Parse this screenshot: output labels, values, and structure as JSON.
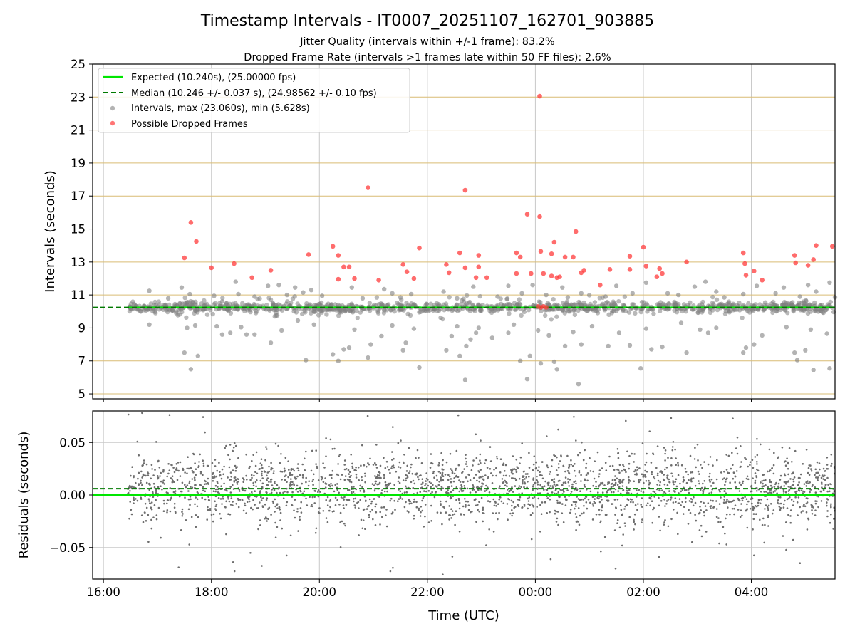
{
  "chart_data": {
    "type": "scatter",
    "title": "Timestamp Intervals - IT0007_20251107_162701_903885",
    "subtitle_1": "Jitter Quality (intervals within +/-1 frame): 83.2%",
    "subtitle_2": "Dropped Frame Rate (intervals >1 frames late within 50 FF files): 2.6%",
    "xlabel": "Time (UTC)",
    "x_ticks": [
      "16:00",
      "18:00",
      "20:00",
      "22:00",
      "00:00",
      "02:00",
      "04:00"
    ],
    "x_range_hours": [
      15.8,
      29.55
    ],
    "x_unit_note": "hours since 00:00 of start day (24 = 00:00 next day)",
    "data_start_hour": 16.45,
    "top_panel": {
      "ylabel": "Intervals (seconds)",
      "ylim": [
        4.7,
        25
      ],
      "y_ticks": [
        "5",
        "7",
        "9",
        "11",
        "13",
        "15",
        "17",
        "19",
        "21",
        "23",
        "25"
      ],
      "y_tick_values": [
        5,
        7,
        9,
        11,
        13,
        15,
        17,
        19,
        21,
        23,
        25
      ],
      "expected_interval_s": 10.24,
      "median_interval_s": 10.246,
      "dropped_frames": [
        [
          17.5,
          13.25
        ],
        [
          17.62,
          15.4
        ],
        [
          17.72,
          14.25
        ],
        [
          18.0,
          12.65
        ],
        [
          18.42,
          12.9
        ],
        [
          18.75,
          12.05
        ],
        [
          19.1,
          12.5
        ],
        [
          19.8,
          13.45
        ],
        [
          20.25,
          13.95
        ],
        [
          20.35,
          13.4
        ],
        [
          20.35,
          11.95
        ],
        [
          20.45,
          12.7
        ],
        [
          20.55,
          12.7
        ],
        [
          20.65,
          12.0
        ],
        [
          20.9,
          17.5
        ],
        [
          21.1,
          11.9
        ],
        [
          21.55,
          12.85
        ],
        [
          21.62,
          12.4
        ],
        [
          21.75,
          12.0
        ],
        [
          21.85,
          13.85
        ],
        [
          22.35,
          12.85
        ],
        [
          22.4,
          12.35
        ],
        [
          22.6,
          13.55
        ],
        [
          22.7,
          17.35
        ],
        [
          22.7,
          12.65
        ],
        [
          22.9,
          12.05
        ],
        [
          22.95,
          13.4
        ],
        [
          22.95,
          12.7
        ],
        [
          23.1,
          12.05
        ],
        [
          23.65,
          12.3
        ],
        [
          23.65,
          13.55
        ],
        [
          23.72,
          13.3
        ],
        [
          23.85,
          15.9
        ],
        [
          23.92,
          12.3
        ],
        [
          24.08,
          23.05
        ],
        [
          24.08,
          15.75
        ],
        [
          24.1,
          13.65
        ],
        [
          24.15,
          12.3
        ],
        [
          24.3,
          13.5
        ],
        [
          24.3,
          12.15
        ],
        [
          24.35,
          14.2
        ],
        [
          24.4,
          12.05
        ],
        [
          24.45,
          12.1
        ],
        [
          24.55,
          13.3
        ],
        [
          24.7,
          13.3
        ],
        [
          24.75,
          14.85
        ],
        [
          24.85,
          12.35
        ],
        [
          24.9,
          12.5
        ],
        [
          25.2,
          11.6
        ],
        [
          25.38,
          12.55
        ],
        [
          25.75,
          13.35
        ],
        [
          25.75,
          12.55
        ],
        [
          26.0,
          13.9
        ],
        [
          26.05,
          12.75
        ],
        [
          26.25,
          12.1
        ],
        [
          26.3,
          12.6
        ],
        [
          26.35,
          12.3
        ],
        [
          26.8,
          13.0
        ],
        [
          27.85,
          13.55
        ],
        [
          27.88,
          12.9
        ],
        [
          27.9,
          12.2
        ],
        [
          28.05,
          12.45
        ],
        [
          28.2,
          11.9
        ],
        [
          28.8,
          13.4
        ],
        [
          28.82,
          12.95
        ],
        [
          29.05,
          12.8
        ],
        [
          29.15,
          13.15
        ],
        [
          29.2,
          14.0
        ],
        [
          29.5,
          13.95
        ],
        [
          24.05,
          10.3
        ],
        [
          24.1,
          10.25
        ],
        [
          24.15,
          10.3
        ],
        [
          24.2,
          10.25
        ]
      ],
      "high_intervals": [
        [
          16.85,
          11.25
        ],
        [
          17.2,
          10.8
        ],
        [
          17.45,
          11.45
        ],
        [
          17.55,
          10.55
        ],
        [
          17.6,
          11.05
        ],
        [
          18.05,
          10.95
        ],
        [
          18.2,
          10.6
        ],
        [
          18.45,
          11.8
        ],
        [
          18.5,
          11.05
        ],
        [
          18.8,
          10.9
        ],
        [
          19.05,
          11.55
        ],
        [
          19.25,
          11.6
        ],
        [
          19.4,
          11.0
        ],
        [
          19.55,
          11.45
        ],
        [
          19.7,
          11.15
        ],
        [
          19.85,
          11.3
        ],
        [
          20.05,
          10.95
        ],
        [
          20.6,
          11.45
        ],
        [
          20.8,
          10.8
        ],
        [
          21.2,
          11.35
        ],
        [
          21.35,
          11.1
        ],
        [
          21.5,
          10.85
        ],
        [
          21.7,
          11.05
        ],
        [
          22.3,
          11.2
        ],
        [
          22.55,
          10.8
        ],
        [
          22.85,
          11.5
        ],
        [
          23.3,
          10.9
        ],
        [
          23.5,
          11.55
        ],
        [
          23.75,
          11.1
        ],
        [
          23.95,
          11.6
        ],
        [
          24.2,
          11.0
        ],
        [
          24.5,
          11.45
        ],
        [
          24.6,
          10.85
        ],
        [
          24.85,
          11.1
        ],
        [
          25.3,
          10.9
        ],
        [
          25.5,
          11.55
        ],
        [
          25.8,
          11.1
        ],
        [
          26.05,
          11.75
        ],
        [
          26.45,
          11.1
        ],
        [
          26.65,
          11.0
        ],
        [
          26.95,
          11.5
        ],
        [
          27.15,
          11.8
        ],
        [
          27.35,
          11.2
        ],
        [
          27.5,
          10.85
        ],
        [
          27.85,
          11.05
        ],
        [
          28.1,
          11.55
        ],
        [
          28.45,
          11.1
        ],
        [
          28.6,
          11.45
        ],
        [
          28.9,
          10.9
        ],
        [
          29.05,
          11.6
        ],
        [
          29.2,
          11.2
        ],
        [
          29.45,
          11.75
        ]
      ],
      "low_intervals": [
        [
          16.85,
          9.2
        ],
        [
          17.5,
          7.5
        ],
        [
          17.62,
          6.5
        ],
        [
          17.7,
          9.15
        ],
        [
          17.75,
          7.3
        ],
        [
          17.55,
          9.0
        ],
        [
          18.1,
          9.1
        ],
        [
          18.2,
          8.6
        ],
        [
          18.35,
          8.7
        ],
        [
          18.55,
          9.05
        ],
        [
          18.65,
          8.6
        ],
        [
          18.8,
          8.6
        ],
        [
          19.1,
          8.1
        ],
        [
          19.3,
          8.85
        ],
        [
          19.6,
          9.45
        ],
        [
          19.75,
          7.05
        ],
        [
          19.9,
          9.2
        ],
        [
          20.25,
          7.4
        ],
        [
          20.35,
          7.0
        ],
        [
          20.45,
          7.7
        ],
        [
          20.55,
          7.8
        ],
        [
          20.65,
          8.9
        ],
        [
          20.9,
          7.2
        ],
        [
          20.95,
          8.0
        ],
        [
          21.15,
          8.5
        ],
        [
          21.35,
          9.15
        ],
        [
          21.55,
          7.65
        ],
        [
          21.6,
          8.1
        ],
        [
          21.75,
          8.95
        ],
        [
          21.85,
          6.6
        ],
        [
          22.35,
          7.65
        ],
        [
          22.45,
          8.5
        ],
        [
          22.55,
          9.1
        ],
        [
          22.6,
          7.3
        ],
        [
          22.7,
          5.85
        ],
        [
          22.72,
          7.9
        ],
        [
          22.8,
          8.3
        ],
        [
          22.9,
          8.7
        ],
        [
          22.95,
          9.0
        ],
        [
          23.2,
          8.4
        ],
        [
          23.5,
          8.7
        ],
        [
          23.6,
          9.2
        ],
        [
          23.72,
          7.0
        ],
        [
          23.85,
          5.9
        ],
        [
          23.9,
          7.3
        ],
        [
          24.05,
          8.85
        ],
        [
          24.1,
          6.85
        ],
        [
          24.25,
          8.55
        ],
        [
          24.35,
          6.95
        ],
        [
          24.4,
          6.5
        ],
        [
          24.55,
          7.9
        ],
        [
          24.7,
          8.75
        ],
        [
          24.8,
          5.6
        ],
        [
          24.85,
          8.0
        ],
        [
          25.05,
          9.1
        ],
        [
          25.35,
          7.9
        ],
        [
          25.55,
          8.7
        ],
        [
          25.75,
          7.95
        ],
        [
          25.95,
          6.55
        ],
        [
          26.05,
          8.95
        ],
        [
          26.15,
          7.7
        ],
        [
          26.35,
          7.85
        ],
        [
          26.7,
          9.3
        ],
        [
          26.8,
          7.5
        ],
        [
          27.05,
          8.9
        ],
        [
          27.2,
          8.7
        ],
        [
          27.35,
          9.0
        ],
        [
          27.85,
          7.5
        ],
        [
          27.9,
          7.8
        ],
        [
          28.05,
          8.0
        ],
        [
          28.2,
          8.55
        ],
        [
          28.65,
          9.05
        ],
        [
          28.8,
          7.5
        ],
        [
          28.85,
          7.05
        ],
        [
          29.0,
          7.65
        ],
        [
          29.1,
          8.9
        ],
        [
          29.15,
          6.45
        ],
        [
          29.4,
          8.65
        ],
        [
          29.45,
          6.55
        ],
        [
          24.95,
          10.05
        ]
      ],
      "note": "dense band of ~2000 regular intervals near 10.24 s generated deterministically"
    },
    "bottom_panel": {
      "ylabel": "Residuals (seconds)",
      "ylim": [
        -0.08,
        0.08
      ],
      "y_ticks": [
        "0.05",
        "0.00",
        "−0.05"
      ],
      "y_tick_values": [
        0.05,
        0.0,
        -0.05
      ],
      "expected_residual_s": 0.0,
      "median_residual_s": 0.006,
      "note": "~2600 residual points scattered mostly within +/-0.04 s, generated deterministically"
    },
    "legend": {
      "position": "upper-left",
      "entries": [
        {
          "label": "Expected (10.240s), (25.00000 fps)",
          "kind": "line",
          "color": "#00e600"
        },
        {
          "label": "Median (10.246 +/- 0.037 s), (24.98562 +/- 0.10 fps)",
          "kind": "dashed",
          "color": "#007a00"
        },
        {
          "label": "Intervals, max (23.060s), min (5.628s)",
          "kind": "dot",
          "color": "#808080"
        },
        {
          "label": "Possible Dropped Frames",
          "kind": "dot",
          "color": "#ff3b3b"
        }
      ]
    },
    "colors": {
      "expected": "#00e600",
      "median": "#007a00",
      "intervals": "#808080",
      "dropped": "#ff3b3b",
      "residual": "#6e6e6e",
      "top_grid": "#d9bc74",
      "v_grid": "#c8c8c8",
      "residual_grid": "#c8c8c8"
    }
  }
}
